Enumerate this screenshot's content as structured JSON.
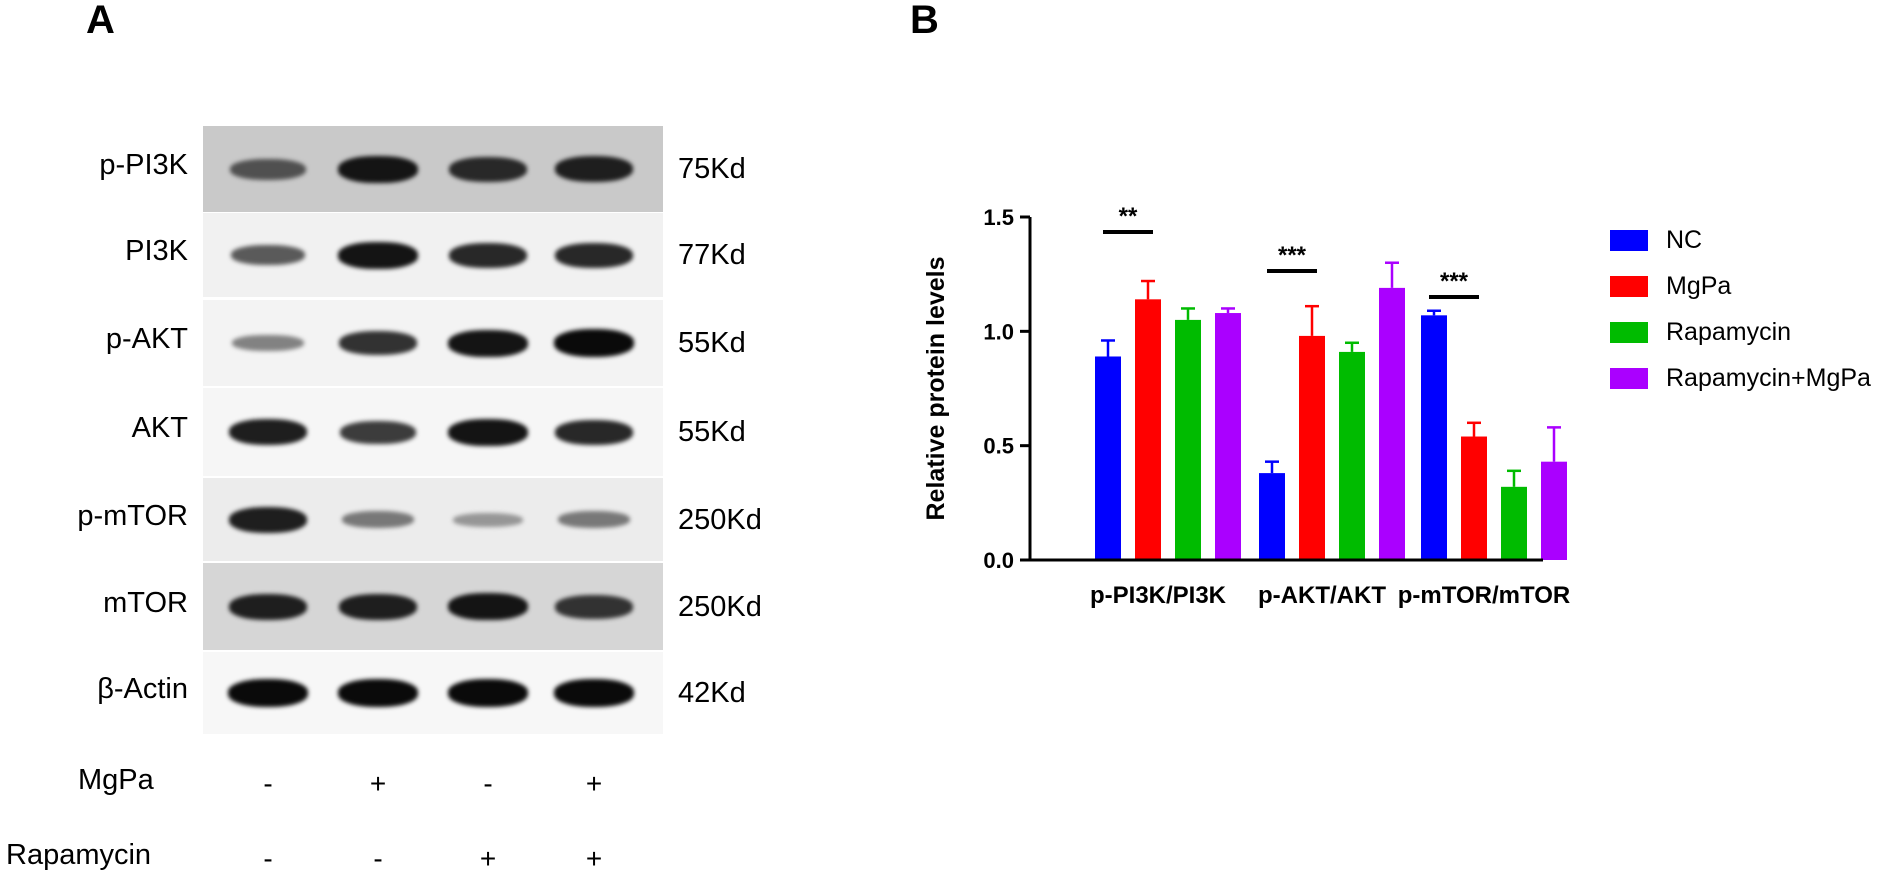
{
  "panels": {
    "a": "A",
    "b": "B"
  },
  "blot": {
    "rows": [
      {
        "protein": "p-PI3K",
        "mw": "75Kd",
        "bg": "#c9c9c9",
        "intensity": [
          0.65,
          0.95,
          0.85,
          0.9
        ]
      },
      {
        "protein": "PI3K",
        "mw": "77Kd",
        "bg": "#f1f1f1",
        "intensity": [
          0.6,
          0.95,
          0.85,
          0.85
        ]
      },
      {
        "protein": "p-AKT",
        "mw": "55Kd",
        "bg": "#f3f3f3",
        "intensity": [
          0.4,
          0.8,
          0.95,
          1.0
        ]
      },
      {
        "protein": "AKT",
        "mw": "55Kd",
        "bg": "#f6f6f6",
        "intensity": [
          0.9,
          0.75,
          0.95,
          0.85
        ]
      },
      {
        "protein": "p-mTOR",
        "mw": "250Kd",
        "bg": "#ececec",
        "intensity": [
          0.9,
          0.45,
          0.3,
          0.45
        ]
      },
      {
        "protein": "mTOR",
        "mw": "250Kd",
        "bg": "#d6d6d6",
        "intensity": [
          0.9,
          0.9,
          0.95,
          0.8
        ]
      },
      {
        "protein": "β-Actin",
        "mw": "42Kd",
        "bg": "#f7f7f7",
        "intensity": [
          1.0,
          1.0,
          1.0,
          1.0
        ]
      }
    ],
    "conditions": [
      {
        "name": "MgPa",
        "signs": [
          "-",
          "+",
          "-",
          "+"
        ]
      },
      {
        "name": "Rapamycin",
        "signs": [
          "-",
          "-",
          "+",
          "+"
        ]
      }
    ]
  },
  "chart_data": {
    "type": "bar",
    "categories": [
      "p-PI3K/PI3K",
      "p-AKT/AKT",
      "p-mTOR/mTOR"
    ],
    "ylabel": "Relative protein levels",
    "xlabel": "",
    "ylim": [
      0,
      1.5
    ],
    "yticks": [
      "0.0",
      "0.5",
      "1.0",
      "1.5"
    ],
    "legend_position": "right",
    "series": [
      {
        "name": "NC",
        "color": "#0000ff",
        "values": [
          0.89,
          0.38,
          1.07
        ],
        "errors": [
          0.07,
          0.05,
          0.02
        ]
      },
      {
        "name": "MgPa",
        "color": "#ff0000",
        "values": [
          1.14,
          0.98,
          0.54
        ],
        "errors": [
          0.08,
          0.13,
          0.06
        ]
      },
      {
        "name": "Rapamycin",
        "color": "#00bb00",
        "values": [
          1.05,
          0.91,
          0.32
        ],
        "errors": [
          0.05,
          0.04,
          0.07
        ]
      },
      {
        "name": "Rapamycin+MgPa",
        "color": "#aa00ff",
        "values": [
          1.08,
          1.19,
          0.43
        ],
        "errors": [
          0.02,
          0.11,
          0.15
        ]
      }
    ],
    "significance": [
      {
        "category": "p-PI3K/PI3K",
        "label": "**"
      },
      {
        "category": "p-AKT/AKT",
        "label": "***"
      },
      {
        "category": "p-mTOR/mTOR",
        "label": "***"
      }
    ]
  }
}
